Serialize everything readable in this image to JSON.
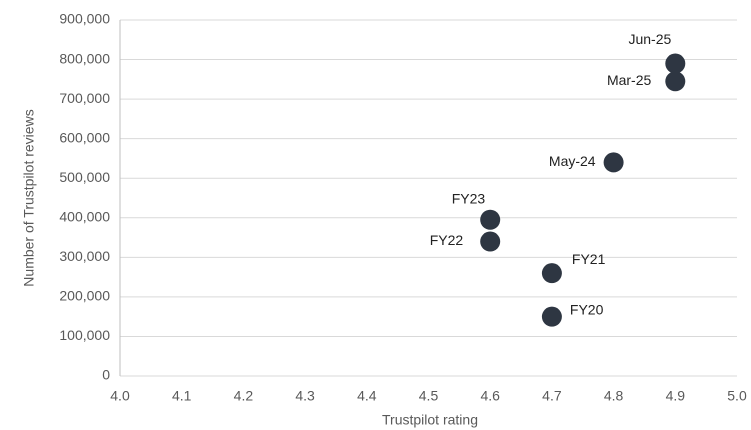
{
  "chart_data": {
    "type": "scatter",
    "x_label": "Trustpilot  rating",
    "y_label": "Number  of Trustpilot  reviews",
    "point_labels": [
      "FY20",
      "FY21",
      "FY22",
      "FY23",
      "May-24",
      "Mar-25",
      "Jun-25"
    ],
    "x": [
      4.7,
      4.7,
      4.6,
      4.6,
      4.8,
      4.9,
      4.9
    ],
    "values": [
      150000,
      260000,
      340000,
      395000,
      540000,
      745000,
      790000
    ],
    "color": "#2e3642",
    "xlim": [
      4.0,
      5.0
    ],
    "xticks": [
      {
        "value": 4,
        "label": "4.0"
      },
      4.1,
      4.2,
      4.3,
      4.4,
      4.5,
      4.6,
      4.7,
      4.8,
      4.9,
      {
        "value": 5,
        "label": "5.0"
      }
    ],
    "ylim": [
      0,
      900000
    ],
    "yticks": [
      0,
      {
        "value": 100000,
        "label": "100,000"
      },
      {
        "value": 200000,
        "label": "200,000"
      },
      {
        "value": 300000,
        "label": "300,000"
      },
      {
        "value": 400000,
        "label": "400,000"
      },
      {
        "value": 500000,
        "label": "500,000"
      },
      {
        "value": 600000,
        "label": "600,000"
      },
      {
        "value": 700000,
        "label": "700,000"
      },
      {
        "value": 800000,
        "label": "800,000"
      },
      {
        "value": 900000,
        "label": "900,000"
      }
    ],
    "grid": true
  }
}
